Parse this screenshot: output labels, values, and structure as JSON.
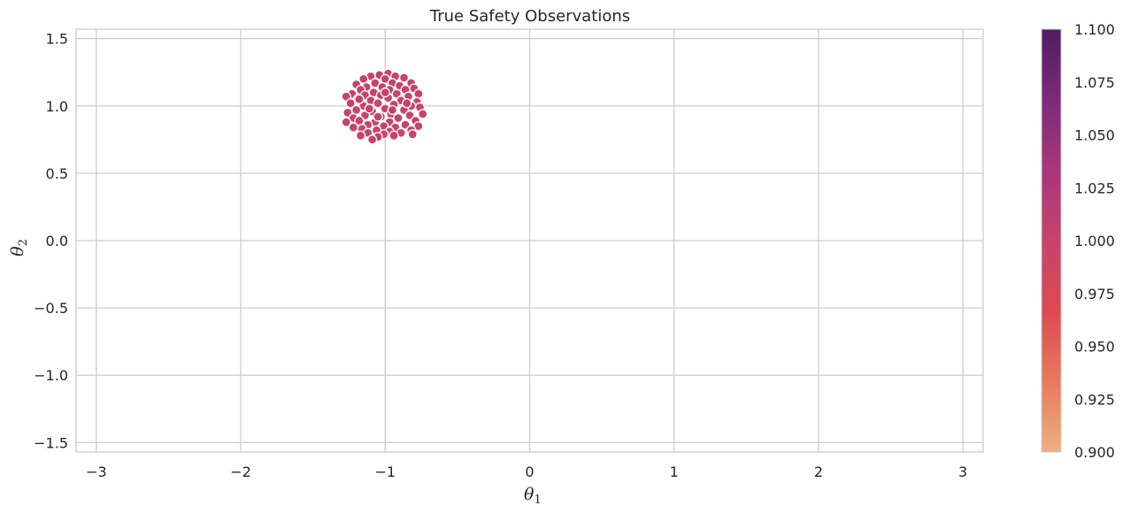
{
  "chart_data": {
    "type": "scatter",
    "title": "True Safety Observations",
    "xlabel": "θ",
    "xlabel_sub": "1",
    "ylabel": "θ",
    "ylabel_sub": "2",
    "xlim": [
      -3.14,
      3.14
    ],
    "ylim": [
      -1.57,
      1.57
    ],
    "xticks": [
      -3,
      -2,
      -1,
      0,
      1,
      2,
      3
    ],
    "xtick_labels": [
      "−3",
      "−2",
      "−1",
      "0",
      "1",
      "2",
      "3"
    ],
    "yticks": [
      1.5,
      1.0,
      0.5,
      0.0,
      -0.5,
      -1.0,
      -1.5
    ],
    "ytick_labels": [
      "1.5",
      "1.0",
      "0.5",
      "0.0",
      "−0.5",
      "−1.0",
      "−1.5"
    ],
    "grid": true,
    "point_color": "#c8426b",
    "point_edge_color": "#ffffff",
    "colorbar": {
      "min": 0.9,
      "max": 1.1,
      "ticks": [
        1.1,
        1.075,
        1.05,
        1.025,
        1.0,
        0.975,
        0.95,
        0.925,
        0.9
      ],
      "tick_labels": [
        "1.100",
        "1.075",
        "1.050",
        "1.025",
        "1.000",
        "0.975",
        "0.950",
        "0.925",
        "0.900"
      ],
      "colors": [
        "#edb081",
        "#e8795d",
        "#dd4a50",
        "#c8426b",
        "#a8367a",
        "#7d2a79",
        "#4f1d63"
      ]
    },
    "points": [
      [
        -0.98,
        1.24
      ],
      [
        -1.04,
        1.23
      ],
      [
        -0.93,
        1.22
      ],
      [
        -1.1,
        1.22
      ],
      [
        -0.87,
        1.21
      ],
      [
        -1.15,
        1.2
      ],
      [
        -1.0,
        1.2
      ],
      [
        -0.82,
        1.17
      ],
      [
        -1.2,
        1.16
      ],
      [
        -1.07,
        1.17
      ],
      [
        -0.95,
        1.17
      ],
      [
        -0.9,
        1.15
      ],
      [
        -1.13,
        1.14
      ],
      [
        -1.02,
        1.14
      ],
      [
        -0.8,
        1.13
      ],
      [
        -0.86,
        1.12
      ],
      [
        -1.17,
        1.12
      ],
      [
        -0.97,
        1.12
      ],
      [
        -1.23,
        1.09
      ],
      [
        -1.08,
        1.1
      ],
      [
        -0.77,
        1.09
      ],
      [
        -0.92,
        1.09
      ],
      [
        -1.03,
        1.08
      ],
      [
        -1.14,
        1.08
      ],
      [
        -0.84,
        1.07
      ],
      [
        -1.27,
        1.07
      ],
      [
        -0.98,
        1.06
      ],
      [
        -1.19,
        1.05
      ],
      [
        -0.89,
        1.04
      ],
      [
        -1.1,
        1.04
      ],
      [
        -0.78,
        1.03
      ],
      [
        -1.05,
        1.02
      ],
      [
        -1.24,
        1.02
      ],
      [
        -0.94,
        1.01
      ],
      [
        -0.82,
        1.0
      ],
      [
        -1.15,
        1.0
      ],
      [
        -0.76,
        0.99
      ],
      [
        -1.0,
        0.98
      ],
      [
        -1.2,
        0.97
      ],
      [
        -0.87,
        0.97
      ],
      [
        -1.09,
        0.96
      ],
      [
        -1.26,
        0.95
      ],
      [
        -0.96,
        0.94
      ],
      [
        -0.74,
        0.94
      ],
      [
        -1.14,
        0.93
      ],
      [
        -0.83,
        0.93
      ],
      [
        -1.03,
        0.92
      ],
      [
        -1.22,
        0.91
      ],
      [
        -0.91,
        0.91
      ],
      [
        -1.18,
        0.89
      ],
      [
        -0.79,
        0.89
      ],
      [
        -1.07,
        0.88
      ],
      [
        -0.97,
        0.88
      ],
      [
        -1.27,
        0.88
      ],
      [
        -0.86,
        0.86
      ],
      [
        -1.12,
        0.86
      ],
      [
        -1.01,
        0.85
      ],
      [
        -0.77,
        0.85
      ],
      [
        -1.22,
        0.84
      ],
      [
        -0.93,
        0.84
      ],
      [
        -1.16,
        0.83
      ],
      [
        -0.82,
        0.82
      ],
      [
        -1.06,
        0.82
      ],
      [
        -0.97,
        0.81
      ],
      [
        -1.12,
        0.8
      ],
      [
        -0.89,
        0.8
      ],
      [
        -1.01,
        0.79
      ],
      [
        -0.81,
        0.79
      ],
      [
        -1.17,
        0.78
      ],
      [
        -0.94,
        0.78
      ],
      [
        -1.05,
        0.77
      ],
      [
        -1.09,
        0.75
      ],
      [
        -1.0,
        1.1
      ],
      [
        -1.11,
        0.98
      ],
      [
        -0.85,
        1.02
      ],
      [
        -0.95,
        0.97
      ],
      [
        -1.05,
        0.92
      ],
      [
        -1.18,
        1.05
      ]
    ]
  }
}
